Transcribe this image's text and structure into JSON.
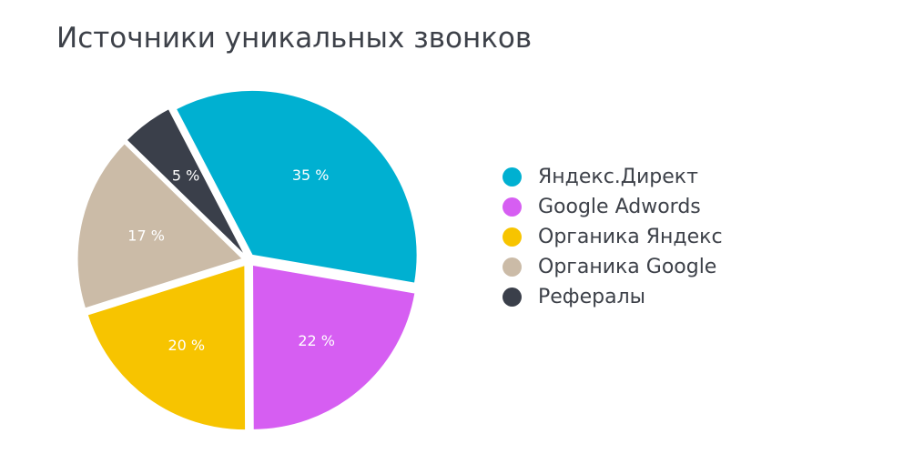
{
  "chart_data": {
    "type": "pie",
    "title": "Источники уникальных звонков",
    "legend_position": "right",
    "slices": [
      {
        "name": "Яндекс.Директ",
        "value": 35,
        "label": "35 %",
        "color": "#00b0d1"
      },
      {
        "name": "Google Adwords",
        "value": 22,
        "label": "22 %",
        "color": "#d65ef2"
      },
      {
        "name": "Органика Яндекс",
        "value": 20,
        "label": "20 %",
        "color": "#f7c400"
      },
      {
        "name": "Органика Google",
        "value": 17,
        "label": "17 %",
        "color": "#cbbba7"
      },
      {
        "name": "Рефералы",
        "value": 5,
        "label": "5 %",
        "color": "#3a3f4a"
      }
    ]
  }
}
